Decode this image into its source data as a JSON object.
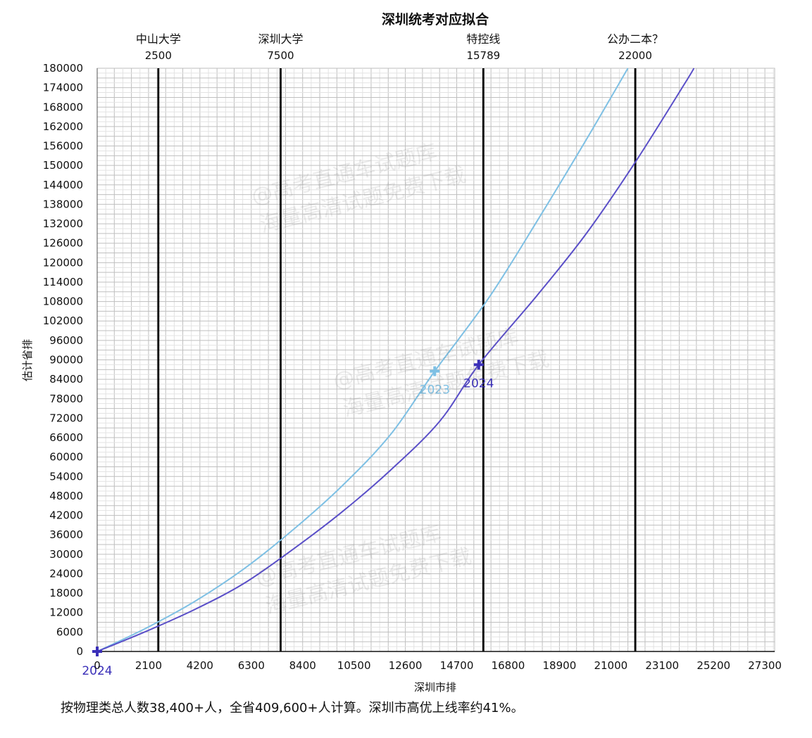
{
  "chart_data": {
    "type": "line",
    "title": "深圳统考对应拟合",
    "xlabel": "深圳市排",
    "ylabel": "估计省排",
    "xlim": [
      0,
      27700
    ],
    "ylim": [
      0,
      180000
    ],
    "x_ticks": [
      0,
      2100,
      4200,
      6300,
      8400,
      10500,
      12600,
      14700,
      16800,
      18900,
      21000,
      23100,
      25200,
      27300
    ],
    "y_ticks": [
      0,
      6000,
      12000,
      18000,
      24000,
      30000,
      36000,
      42000,
      48000,
      54000,
      60000,
      66000,
      72000,
      78000,
      84000,
      90000,
      96000,
      102000,
      108000,
      114000,
      120000,
      126000,
      132000,
      138000,
      144000,
      150000,
      156000,
      162000,
      168000,
      174000,
      180000
    ],
    "grid": true,
    "series": [
      {
        "name": "2023",
        "color": "#7ec0e4",
        "x": [
          0,
          2000,
          4000,
          6000,
          8000,
          10000,
          12000,
          13800,
          16000,
          18000,
          20000,
          21700
        ],
        "y": [
          0,
          7200,
          15500,
          25500,
          37500,
          51000,
          67000,
          86500,
          109000,
          133000,
          158000,
          180000
        ]
      },
      {
        "name": "2024",
        "color": "#5a4fc8",
        "x": [
          0,
          2000,
          4000,
          6000,
          8000,
          10000,
          12000,
          14000,
          15600,
          18000,
          20000,
          22000,
          24000,
          24400
        ],
        "y": [
          0,
          6200,
          13000,
          21000,
          31500,
          43000,
          56000,
          71000,
          88500,
          110000,
          129000,
          151000,
          175000,
          180000
        ]
      }
    ],
    "highlight_points": [
      {
        "label": "2023",
        "x": 13800,
        "y": 86500,
        "color": "#7ec0e4"
      },
      {
        "label": "2024",
        "x": 15600,
        "y": 88500,
        "color": "#3a2fb8"
      },
      {
        "label": "2024",
        "x": 0,
        "y": 0,
        "color": "#3a2fb8"
      }
    ],
    "reference_lines": [
      {
        "label": "中山大学",
        "value_label": "2500",
        "x": 2500
      },
      {
        "label": "深圳大学",
        "value_label": "7500",
        "x": 7500
      },
      {
        "label": "特控线",
        "value_label": "15789",
        "x": 15789
      },
      {
        "label": "公办二本？",
        "value_label": "22000",
        "x": 22000
      }
    ]
  },
  "caption": "按物理类总人数38,400+人，全省409,600+人计算。深圳市高优上线率约41%。",
  "watermark": {
    "line1": "@高考直通车试题库",
    "line2": "海量高清试题免费下载"
  }
}
